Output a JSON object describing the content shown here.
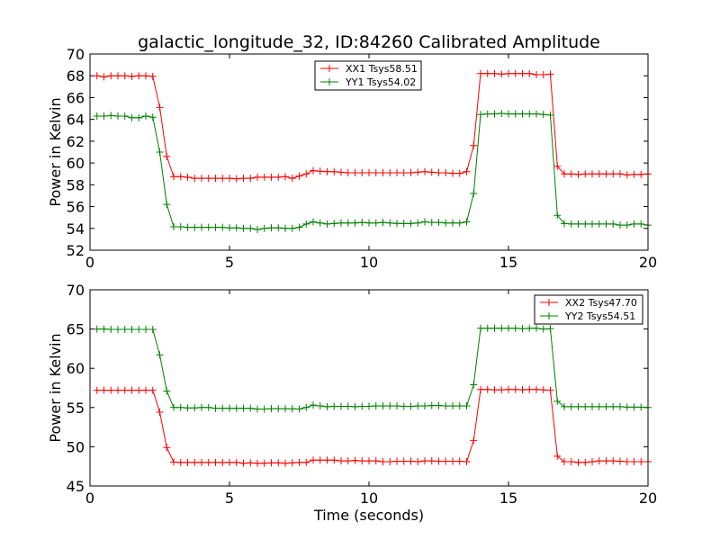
{
  "chart_data": [
    {
      "type": "line",
      "title": "galactic_longitude_32, ID:84260 Calibrated Amplitude",
      "xlabel": "",
      "ylabel": "Power in Kelvin",
      "xlim": [
        0,
        20
      ],
      "ylim": [
        52,
        70
      ],
      "xticks": [
        "0",
        "5",
        "10",
        "15",
        "20"
      ],
      "yticks": [
        "52",
        "54",
        "56",
        "58",
        "60",
        "62",
        "64",
        "66",
        "68",
        "70"
      ],
      "legend_position": "top-center",
      "x": [
        0.25,
        0.5,
        0.75,
        1.0,
        1.25,
        1.5,
        1.75,
        2.0,
        2.25,
        2.5,
        2.75,
        3.0,
        3.25,
        3.5,
        3.75,
        4.0,
        4.25,
        4.5,
        4.75,
        5.0,
        5.25,
        5.5,
        5.75,
        6.0,
        6.25,
        6.5,
        6.75,
        7.0,
        7.25,
        7.5,
        7.75,
        8.0,
        8.25,
        8.5,
        8.75,
        9.0,
        9.25,
        9.5,
        9.75,
        10.0,
        10.25,
        10.5,
        10.75,
        11.0,
        11.25,
        11.5,
        11.75,
        12.0,
        12.25,
        12.5,
        12.75,
        13.0,
        13.25,
        13.5,
        13.75,
        14.0,
        14.25,
        14.5,
        14.75,
        15.0,
        15.25,
        15.5,
        15.75,
        16.0,
        16.25,
        16.5,
        16.75,
        17.0,
        17.25,
        17.5,
        17.75,
        18.0,
        18.25,
        18.5,
        18.75,
        19.0,
        19.25,
        19.5,
        19.75,
        20.0
      ],
      "series": [
        {
          "name": "XX1 Tsys58.51",
          "color": "#ff0000",
          "values": [
            68.0,
            67.9,
            68.0,
            68.0,
            68.0,
            67.95,
            68.0,
            68.0,
            67.95,
            65.1,
            60.6,
            58.75,
            58.75,
            58.7,
            58.6,
            58.6,
            58.6,
            58.6,
            58.6,
            58.6,
            58.55,
            58.6,
            58.6,
            58.7,
            58.7,
            58.7,
            58.7,
            58.75,
            58.6,
            58.8,
            59.0,
            59.3,
            59.25,
            59.2,
            59.2,
            59.15,
            59.1,
            59.1,
            59.1,
            59.1,
            59.1,
            59.1,
            59.1,
            59.1,
            59.1,
            59.1,
            59.15,
            59.2,
            59.15,
            59.1,
            59.1,
            59.05,
            59.05,
            59.2,
            61.6,
            68.2,
            68.2,
            68.2,
            68.15,
            68.2,
            68.2,
            68.2,
            68.2,
            68.1,
            68.1,
            68.15,
            59.7,
            59.0,
            59.0,
            58.95,
            59.0,
            59.0,
            59.0,
            59.0,
            59.0,
            59.0,
            58.9,
            58.95,
            58.95,
            59.0
          ]
        },
        {
          "name": "YY1 Tsys54.02",
          "color": "#008000",
          "values": [
            64.3,
            64.3,
            64.35,
            64.3,
            64.3,
            64.15,
            64.15,
            64.3,
            64.2,
            61.0,
            56.2,
            54.15,
            54.15,
            54.1,
            54.1,
            54.1,
            54.1,
            54.1,
            54.1,
            54.05,
            54.05,
            54.0,
            54.0,
            53.9,
            54.0,
            54.05,
            54.05,
            54.0,
            54.0,
            54.1,
            54.4,
            54.6,
            54.5,
            54.4,
            54.45,
            54.5,
            54.5,
            54.5,
            54.55,
            54.5,
            54.5,
            54.55,
            54.5,
            54.45,
            54.45,
            54.45,
            54.5,
            54.6,
            54.55,
            54.55,
            54.5,
            54.5,
            54.5,
            54.6,
            57.2,
            64.45,
            64.5,
            64.5,
            64.55,
            64.5,
            64.5,
            64.5,
            64.5,
            64.5,
            64.45,
            64.4,
            55.2,
            54.45,
            54.4,
            54.4,
            54.4,
            54.4,
            54.4,
            54.4,
            54.4,
            54.3,
            54.3,
            54.4,
            54.4,
            54.3
          ]
        }
      ]
    },
    {
      "type": "line",
      "title": "",
      "xlabel": "Time (seconds)",
      "ylabel": "Power in Kelvin",
      "xlim": [
        0,
        20
      ],
      "ylim": [
        45,
        70
      ],
      "xticks": [
        "0",
        "5",
        "10",
        "15",
        "20"
      ],
      "yticks": [
        "45",
        "50",
        "55",
        "60",
        "65",
        "70"
      ],
      "legend_position": "top-right",
      "x": [
        0.25,
        0.5,
        0.75,
        1.0,
        1.25,
        1.5,
        1.75,
        2.0,
        2.25,
        2.5,
        2.75,
        3.0,
        3.25,
        3.5,
        3.75,
        4.0,
        4.25,
        4.5,
        4.75,
        5.0,
        5.25,
        5.5,
        5.75,
        6.0,
        6.25,
        6.5,
        6.75,
        7.0,
        7.25,
        7.5,
        7.75,
        8.0,
        8.25,
        8.5,
        8.75,
        9.0,
        9.25,
        9.5,
        9.75,
        10.0,
        10.25,
        10.5,
        10.75,
        11.0,
        11.25,
        11.5,
        11.75,
        12.0,
        12.25,
        12.5,
        12.75,
        13.0,
        13.25,
        13.5,
        13.75,
        14.0,
        14.25,
        14.5,
        14.75,
        15.0,
        15.25,
        15.5,
        15.75,
        16.0,
        16.25,
        16.5,
        16.75,
        17.0,
        17.25,
        17.5,
        17.75,
        18.0,
        18.25,
        18.5,
        18.75,
        19.0,
        19.25,
        19.5,
        19.75,
        20.0
      ],
      "series": [
        {
          "name": "XX2 Tsys47.70",
          "color": "#ff0000",
          "values": [
            57.2,
            57.2,
            57.2,
            57.2,
            57.2,
            57.2,
            57.2,
            57.2,
            57.2,
            54.4,
            49.9,
            48.05,
            48.0,
            48.0,
            48.0,
            48.0,
            48.0,
            48.0,
            48.0,
            48.0,
            48.0,
            47.9,
            47.95,
            47.9,
            47.9,
            47.95,
            47.95,
            47.9,
            47.95,
            48.0,
            48.0,
            48.3,
            48.3,
            48.3,
            48.3,
            48.2,
            48.2,
            48.25,
            48.2,
            48.2,
            48.2,
            48.1,
            48.1,
            48.15,
            48.15,
            48.15,
            48.1,
            48.2,
            48.2,
            48.15,
            48.15,
            48.15,
            48.15,
            48.1,
            50.8,
            57.3,
            57.3,
            57.25,
            57.25,
            57.3,
            57.3,
            57.25,
            57.3,
            57.3,
            57.25,
            57.2,
            48.8,
            48.1,
            48.1,
            48.0,
            48.0,
            48.1,
            48.2,
            48.2,
            48.2,
            48.15,
            48.1,
            48.1,
            48.1,
            48.1
          ]
        },
        {
          "name": "YY2 Tsys54.51",
          "color": "#008000",
          "values": [
            65.0,
            65.0,
            64.95,
            64.95,
            64.95,
            64.95,
            64.95,
            64.95,
            64.95,
            61.7,
            57.1,
            55.0,
            55.0,
            54.95,
            54.95,
            55.0,
            55.0,
            54.9,
            54.9,
            54.9,
            54.9,
            54.9,
            54.9,
            54.8,
            54.8,
            54.85,
            54.85,
            54.85,
            54.85,
            54.8,
            55.0,
            55.3,
            55.2,
            55.1,
            55.15,
            55.15,
            55.15,
            55.1,
            55.15,
            55.15,
            55.2,
            55.2,
            55.2,
            55.2,
            55.15,
            55.15,
            55.2,
            55.2,
            55.25,
            55.25,
            55.2,
            55.2,
            55.2,
            55.2,
            57.9,
            65.1,
            65.1,
            65.1,
            65.1,
            65.1,
            65.1,
            65.05,
            65.1,
            65.1,
            65.0,
            65.05,
            55.8,
            55.1,
            55.1,
            55.1,
            55.1,
            55.1,
            55.1,
            55.1,
            55.1,
            55.1,
            55.05,
            55.05,
            55.05,
            55.0
          ]
        }
      ]
    }
  ]
}
